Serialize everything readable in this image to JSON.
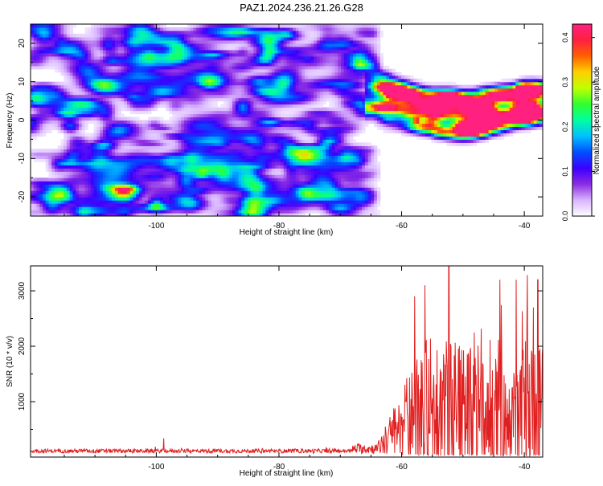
{
  "title": "PAZ1.2024.236.21.26.G28",
  "chart_data": [
    {
      "type": "heatmap",
      "xlabel": "Height of straight line (km)",
      "ylabel": "Frequency (Hz)",
      "xlim": [
        -120.5,
        -37
      ],
      "ylim": [
        -25,
        25
      ],
      "x_ticks": [
        -100,
        -80,
        -60,
        -40
      ],
      "y_ticks": [
        -20,
        -10,
        0,
        10,
        20
      ],
      "colorbar": {
        "label": "Normalized spectral amplitude",
        "range": [
          0,
          0.43
        ],
        "ticks": [
          0.0,
          0.1,
          0.2,
          0.3,
          0.4
        ],
        "colors": [
          "#ffffff",
          "#d8b4ff",
          "#8a2be2",
          "#3b00ff",
          "#0050ff",
          "#00c0ff",
          "#00ffa0",
          "#30ff30",
          "#c0ff00",
          "#ffd000",
          "#ff6000",
          "#ff2040",
          "#ff2080"
        ]
      },
      "noise_region_km": [
        -120.5,
        -64
      ],
      "signal_band": {
        "x_range_km": [
          -64,
          -37
        ],
        "center_frequency_hz_at": [
          [
            -64,
            7
          ],
          [
            -60,
            3
          ],
          [
            -55,
            2
          ],
          [
            -50,
            1
          ],
          [
            -45,
            3
          ],
          [
            -40,
            5
          ],
          [
            -37,
            6
          ]
        ],
        "half_width_hz": 5,
        "peaks": [
          {
            "x": -57.5,
            "y": 0,
            "value": 0.43
          },
          {
            "x": -44.5,
            "y": 6,
            "value": 0.42
          },
          {
            "x": -39.5,
            "y": 7,
            "value": 0.42
          },
          {
            "x": -61.5,
            "y": 4,
            "value": 0.3
          },
          {
            "x": -55,
            "y": 5,
            "value": 0.28
          },
          {
            "x": -48,
            "y": 0,
            "value": 0.25
          },
          {
            "x": -46,
            "y": -1,
            "value": 0.22
          },
          {
            "x": -41,
            "y": 0,
            "value": 0.2
          }
        ]
      }
    },
    {
      "type": "line",
      "xlabel": "Height of straight line (km)",
      "ylabel": "SNR (10 * v/v)",
      "xlim": [
        -120.5,
        -37
      ],
      "ylim": [
        0,
        3450
      ],
      "x_ticks": [
        -100,
        -80,
        -60,
        -40
      ],
      "y_ticks": [
        1000,
        2000,
        3000
      ],
      "line_color": "#e02020",
      "envelope_segments": [
        {
          "x_range": [
            -120.5,
            -68
          ],
          "baseline": 110,
          "amplitude": 60
        },
        {
          "x_range": [
            -68,
            -64
          ],
          "baseline": 150,
          "amplitude": 150
        },
        {
          "x_range": [
            -64,
            -58
          ],
          "baseline": 400,
          "amplitude": 900
        },
        {
          "x_range": [
            -58,
            -37
          ],
          "baseline": 800,
          "amplitude": 2200
        }
      ],
      "notable_points": [
        {
          "x": -98.8,
          "y": 340
        },
        {
          "x": -52.3,
          "y": 3450
        },
        {
          "x": -57.9,
          "y": 2900
        },
        {
          "x": -41.3,
          "y": 3200
        },
        {
          "x": -37.8,
          "y": 3200
        },
        {
          "x": -44.0,
          "y": 3200
        },
        {
          "x": -38.5,
          "y": 2700
        }
      ]
    }
  ]
}
